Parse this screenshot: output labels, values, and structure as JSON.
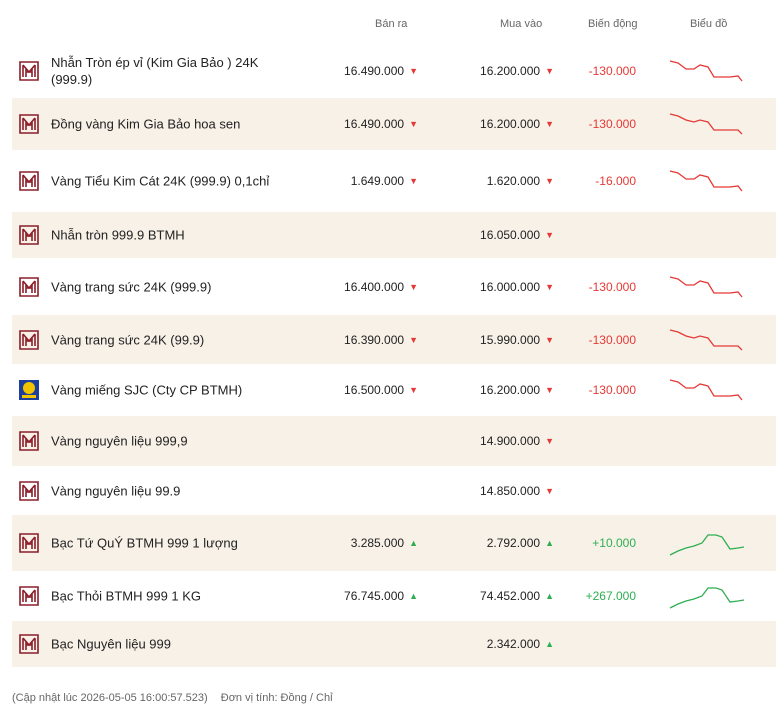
{
  "header": {
    "sell": "Bán ra",
    "buy": "Mua vào",
    "change": "Biến động",
    "chart": "Biểu đồ"
  },
  "rows": [
    {
      "name": "Nhẫn Tròn ép vỉ (Kim Gia Bảo ) 24K (999.9)",
      "sell": "16.490.000",
      "sell_dir": "down",
      "buy": "16.200.000",
      "buy_dir": "down",
      "change": "-130.000",
      "trend": "down",
      "logo": "btmh-logo-icon",
      "alt": false
    },
    {
      "name": "Đồng vàng Kim Gia Bảo hoa sen",
      "sell": "16.490.000",
      "sell_dir": "down",
      "buy": "16.200.000",
      "buy_dir": "down",
      "change": "-130.000",
      "trend": "down",
      "logo": "btmh-logo-icon",
      "alt": true
    },
    {
      "name": "Vàng Tiểu Kim Cát 24K (999.9) 0,1chỉ",
      "sell": "1.649.000",
      "sell_dir": "down",
      "buy": "1.620.000",
      "buy_dir": "down",
      "change": "-16.000",
      "trend": "down",
      "logo": "btmh-logo-icon",
      "alt": false
    },
    {
      "name": "Nhẫn tròn 999.9 BTMH",
      "sell": "",
      "sell_dir": "",
      "buy": "16.050.000",
      "buy_dir": "down",
      "change": "",
      "trend": "",
      "logo": "btmh-logo-icon",
      "alt": true
    },
    {
      "name": "Vàng trang sức 24K (999.9)",
      "sell": "16.400.000",
      "sell_dir": "down",
      "buy": "16.000.000",
      "buy_dir": "down",
      "change": "-130.000",
      "trend": "down",
      "logo": "btmh-logo-icon",
      "alt": false
    },
    {
      "name": "Vàng trang sức 24K (99.9)",
      "sell": "16.390.000",
      "sell_dir": "down",
      "buy": "15.990.000",
      "buy_dir": "down",
      "change": "-130.000",
      "trend": "down",
      "logo": "btmh-logo-icon",
      "alt": true
    },
    {
      "name": "Vàng miếng SJC (Cty CP BTMH)",
      "sell": "16.500.000",
      "sell_dir": "down",
      "buy": "16.200.000",
      "buy_dir": "down",
      "change": "-130.000",
      "trend": "down",
      "logo": "sjc-logo-icon",
      "alt": false
    },
    {
      "name": "Vàng nguyên liệu 999,9",
      "sell": "",
      "sell_dir": "",
      "buy": "14.900.000",
      "buy_dir": "down",
      "change": "",
      "trend": "",
      "logo": "btmh-logo-icon",
      "alt": true
    },
    {
      "name": "Vàng nguyên liệu 99.9",
      "sell": "",
      "sell_dir": "",
      "buy": "14.850.000",
      "buy_dir": "down",
      "change": "",
      "trend": "",
      "logo": "btmh-logo-icon",
      "alt": false
    },
    {
      "name": "Bạc Tứ QuÝ BTMH 999 1 lượng",
      "sell": "3.285.000",
      "sell_dir": "up",
      "buy": "2.792.000",
      "buy_dir": "up",
      "change": "+10.000",
      "trend": "up",
      "logo": "btmh-logo-icon",
      "alt": true
    },
    {
      "name": "Bạc Thỏi BTMH 999 1 KG",
      "sell": "76.745.000",
      "sell_dir": "up",
      "buy": "74.452.000",
      "buy_dir": "up",
      "change": "+267.000",
      "trend": "up",
      "logo": "btmh-logo-icon",
      "alt": false
    },
    {
      "name": "Bạc Nguyên liệu 999",
      "sell": "",
      "sell_dir": "",
      "buy": "2.342.000",
      "buy_dir": "up",
      "change": "",
      "trend": "",
      "logo": "btmh-logo-icon",
      "alt": true
    }
  ],
  "footer": {
    "updated": "(Cập nhật lúc 2026-05-05 16:00:57.523)",
    "unit": "Đơn vị tính: Đồng / Chỉ"
  },
  "colors": {
    "down": "#e53935",
    "up": "#2eaf52",
    "row_alt_bg": "#f8f1e8",
    "brand": "#8b1e2a",
    "sjc_blue": "#1c3f9a",
    "sjc_gold": "#f2c400"
  }
}
